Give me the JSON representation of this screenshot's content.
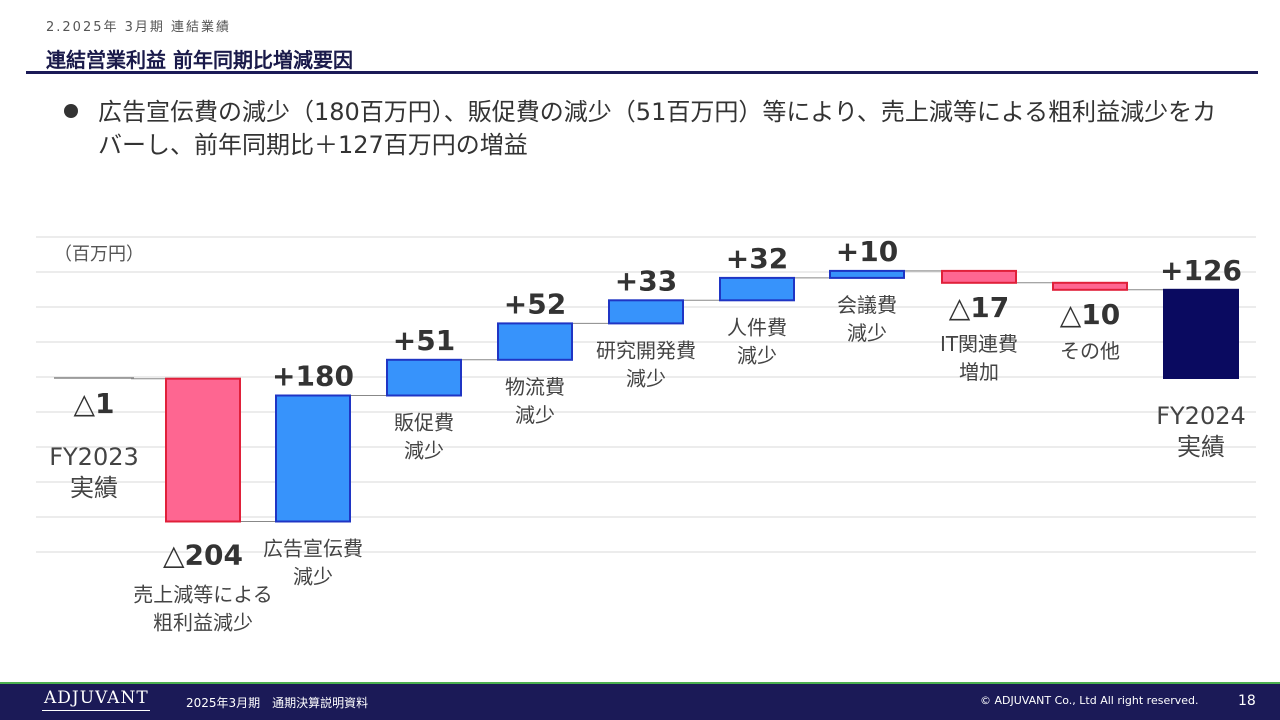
{
  "header": {
    "section": "2.2025年 3月期 連結業績",
    "title": "連結営業利益 前年同期比増減要因"
  },
  "bullet": {
    "text": "広告宣伝費の減少（180百万円）、販促費の減少（51百万円）等により、売上減等による粗利益減少をカバーし、前年同期比＋127百万円の増益"
  },
  "chart_data": {
    "type": "waterfall",
    "unit_label": "（百万円）",
    "colors": {
      "increase": "#3793fb",
      "decrease": "#fe6691",
      "total": "#0a0a60",
      "baseline": "#888888",
      "grid": "#d9d9d9"
    },
    "steps": [
      {
        "kind": "total",
        "value": -1,
        "value_label": "△1",
        "name_lines": [
          "FY2023",
          "実績"
        ]
      },
      {
        "kind": "decrease",
        "value": -204,
        "value_label": "△204",
        "name_lines": [
          "売上減等による",
          "粗利益減少"
        ]
      },
      {
        "kind": "increase",
        "value": 180,
        "value_label": "+180",
        "name_lines": [
          "広告宣伝費",
          "減少"
        ]
      },
      {
        "kind": "increase",
        "value": 51,
        "value_label": "+51",
        "name_lines": [
          "販促費",
          "減少"
        ]
      },
      {
        "kind": "increase",
        "value": 52,
        "value_label": "+52",
        "name_lines": [
          "物流費",
          "減少"
        ]
      },
      {
        "kind": "increase",
        "value": 33,
        "value_label": "+33",
        "name_lines": [
          "研究開発費",
          "減少"
        ]
      },
      {
        "kind": "increase",
        "value": 32,
        "value_label": "+32",
        "name_lines": [
          "人件費",
          "減少"
        ]
      },
      {
        "kind": "increase",
        "value": 10,
        "value_label": "+10",
        "name_lines": [
          "会議費",
          "減少"
        ]
      },
      {
        "kind": "decrease",
        "value": -17,
        "value_label": "△17",
        "name_lines": [
          "IT関連費",
          "増加"
        ]
      },
      {
        "kind": "decrease",
        "value": -10,
        "value_label": "△10",
        "name_lines": [
          "その他"
        ]
      },
      {
        "kind": "total",
        "value": 126,
        "value_label": "+126",
        "name_lines": [
          "FY2024",
          "実績"
        ]
      }
    ]
  },
  "footer": {
    "logo": "ADJUVANT",
    "doc_title": "2025年3月期　通期決算説明資料",
    "copyright": "© ADJUVANT Co., Ltd All right reserved.",
    "page": "18"
  }
}
